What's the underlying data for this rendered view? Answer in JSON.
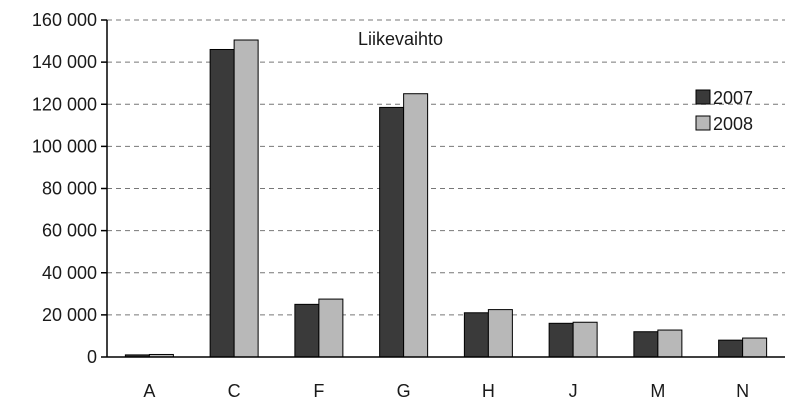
{
  "chart_data": {
    "type": "bar",
    "title": "Liikevaihto",
    "categories": [
      "A",
      "C",
      "F",
      "G",
      "H",
      "J",
      "M",
      "N"
    ],
    "series": [
      {
        "name": "2007",
        "color": "#3a3a3a",
        "values": [
          1000,
          146000,
          25000,
          118500,
          21000,
          16000,
          12000,
          8000
        ]
      },
      {
        "name": "2008",
        "color": "#b8b8b8",
        "values": [
          1200,
          150500,
          27500,
          125000,
          22500,
          16500,
          12800,
          9000
        ]
      }
    ],
    "y_ticks": [
      "0",
      "20 000",
      "40 000",
      "60 000",
      "80 000",
      "100 000",
      "120 000",
      "140 000",
      "160 000"
    ],
    "ylim": [
      0,
      160000
    ],
    "grid": true,
    "legend_position": "top-right"
  }
}
